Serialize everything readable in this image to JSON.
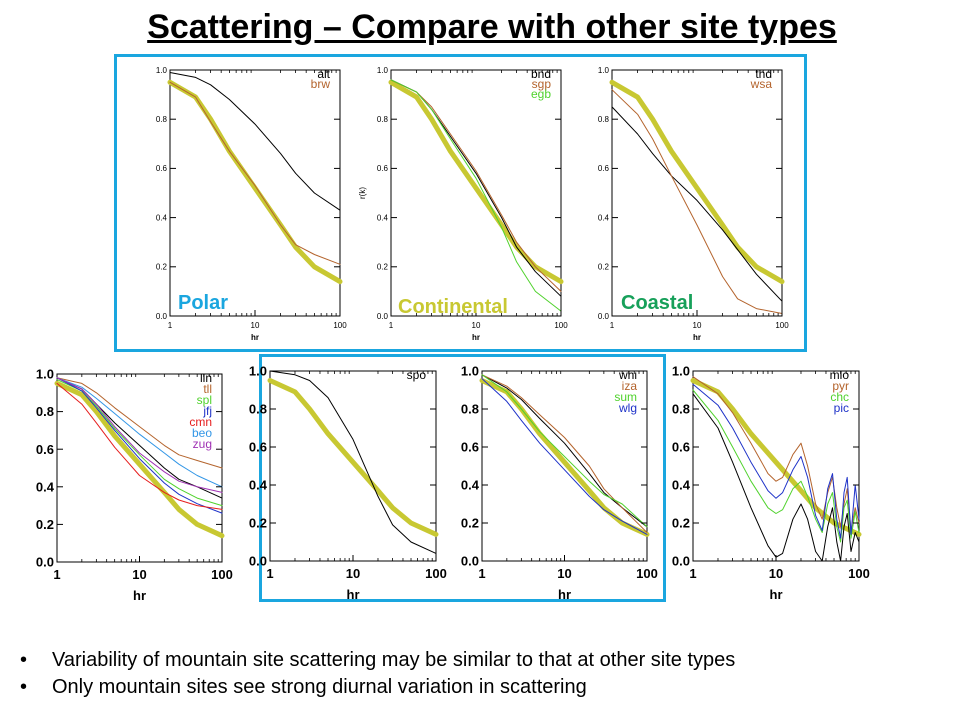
{
  "slide": {
    "title": "Scattering – Compare with other site types",
    "bullets": [
      "Variability of mountain site scattering may be similar to that at other site types",
      "Only mountain sites see strong diurnal variation in scattering"
    ]
  },
  "colors": {
    "highlight_box": "#1aa6df",
    "reference_curve": "#c8c832",
    "polar_label": "#1aa6df",
    "continental_label": "#c8c832",
    "coastal_label": "#17a05a"
  },
  "group_labels": {
    "polar": "Polar",
    "continental": "Continental",
    "coastal": "Coastal"
  },
  "chart_data": [
    {
      "id": "alt-brw",
      "type": "line",
      "xscale": "log",
      "xlim": [
        1,
        100
      ],
      "ylim": [
        0,
        1.0
      ],
      "xticks": [
        "1",
        "10",
        "100"
      ],
      "yticks": [
        "0.0",
        "0.2",
        "0.4",
        "0.6",
        "0.8",
        "1.0"
      ],
      "xlabel": "hr",
      "ylabel": "",
      "group_label": "Polar",
      "series": [
        {
          "name": "alt",
          "color": "#000000",
          "role": "site",
          "x": [
            1,
            2,
            3,
            5,
            10,
            20,
            30,
            50,
            100
          ],
          "y": [
            0.99,
            0.97,
            0.94,
            0.88,
            0.78,
            0.66,
            0.58,
            0.5,
            0.43
          ]
        },
        {
          "name": "brw",
          "color": "#b4642d",
          "role": "site",
          "x": [
            1,
            2,
            3,
            5,
            10,
            20,
            30,
            50,
            100
          ],
          "y": [
            0.95,
            0.89,
            0.79,
            0.67,
            0.53,
            0.37,
            0.29,
            0.25,
            0.21
          ]
        },
        {
          "name": "",
          "color": "#c8c832",
          "role": "reference",
          "x": [
            1,
            2,
            3,
            5,
            10,
            20,
            30,
            50,
            100
          ],
          "y": [
            0.95,
            0.89,
            0.8,
            0.67,
            0.52,
            0.37,
            0.28,
            0.2,
            0.14
          ]
        }
      ]
    },
    {
      "id": "bnd-sgp-egb",
      "type": "line",
      "xscale": "log",
      "xlim": [
        1,
        100
      ],
      "ylim": [
        0,
        1.0
      ],
      "xticks": [
        "1",
        "10",
        "100"
      ],
      "yticks": [
        "0.0",
        "0.2",
        "0.4",
        "0.6",
        "0.8",
        "1.0"
      ],
      "xlabel": "hr",
      "ylabel": "r(k)",
      "group_label": "Continental",
      "series": [
        {
          "name": "bnd",
          "color": "#000000",
          "role": "site",
          "x": [
            1,
            2,
            3,
            5,
            10,
            20,
            30,
            50,
            100
          ],
          "y": [
            0.96,
            0.91,
            0.84,
            0.73,
            0.58,
            0.4,
            0.28,
            0.18,
            0.08
          ]
        },
        {
          "name": "sgp",
          "color": "#b4642d",
          "role": "site",
          "x": [
            1,
            2,
            3,
            5,
            10,
            20,
            30,
            50,
            100
          ],
          "y": [
            0.96,
            0.91,
            0.85,
            0.74,
            0.59,
            0.41,
            0.3,
            0.2,
            0.1
          ]
        },
        {
          "name": "egb",
          "color": "#50d22d",
          "role": "site",
          "x": [
            1,
            2,
            3,
            5,
            10,
            20,
            30,
            50,
            100
          ],
          "y": [
            0.96,
            0.91,
            0.84,
            0.72,
            0.56,
            0.36,
            0.22,
            0.1,
            0.02
          ]
        },
        {
          "name": "",
          "color": "#c8c832",
          "role": "reference",
          "x": [
            1,
            2,
            3,
            5,
            10,
            20,
            30,
            50,
            100
          ],
          "y": [
            0.95,
            0.89,
            0.8,
            0.67,
            0.52,
            0.37,
            0.28,
            0.2,
            0.14
          ]
        }
      ]
    },
    {
      "id": "thd-wsa",
      "type": "line",
      "xscale": "log",
      "xlim": [
        1,
        100
      ],
      "ylim": [
        0,
        1.0
      ],
      "xticks": [
        "1",
        "10",
        "100"
      ],
      "yticks": [
        "0.0",
        "0.2",
        "0.4",
        "0.6",
        "0.8",
        "1.0"
      ],
      "xlabel": "hr",
      "ylabel": "",
      "group_label": "Coastal",
      "series": [
        {
          "name": "thd",
          "color": "#000000",
          "role": "site",
          "x": [
            1,
            2,
            3,
            5,
            10,
            20,
            30,
            50,
            100
          ],
          "y": [
            0.85,
            0.74,
            0.66,
            0.57,
            0.47,
            0.35,
            0.27,
            0.17,
            0.06
          ]
        },
        {
          "name": "wsa",
          "color": "#b4642d",
          "role": "site",
          "x": [
            1,
            2,
            3,
            5,
            10,
            20,
            30,
            50,
            100
          ],
          "y": [
            0.92,
            0.82,
            0.72,
            0.57,
            0.37,
            0.16,
            0.07,
            0.03,
            0.01
          ]
        },
        {
          "name": "",
          "color": "#c8c832",
          "role": "reference",
          "x": [
            1,
            2,
            3,
            5,
            10,
            20,
            30,
            50,
            100
          ],
          "y": [
            0.95,
            0.89,
            0.8,
            0.67,
            0.52,
            0.37,
            0.28,
            0.2,
            0.14
          ]
        }
      ]
    },
    {
      "id": "lln-tll-spl-jfj-cmn-beo-zug",
      "type": "line",
      "xscale": "log",
      "xlim": [
        1,
        100
      ],
      "ylim": [
        0,
        1.0
      ],
      "xticks": [
        "1",
        "10",
        "100"
      ],
      "yticks": [
        "0.0",
        "0.2",
        "0.4",
        "0.6",
        "0.8",
        "1.0"
      ],
      "xlabel": "hr",
      "ylabel": "",
      "series": [
        {
          "name": "lln",
          "color": "#000000",
          "role": "site",
          "x": [
            1,
            2,
            3,
            5,
            10,
            20,
            30,
            50,
            100
          ],
          "y": [
            0.98,
            0.92,
            0.84,
            0.74,
            0.62,
            0.5,
            0.44,
            0.4,
            0.34
          ]
        },
        {
          "name": "tll",
          "color": "#b4642d",
          "role": "site",
          "x": [
            1,
            2,
            3,
            5,
            10,
            20,
            30,
            50,
            100
          ],
          "y": [
            0.98,
            0.95,
            0.9,
            0.82,
            0.72,
            0.62,
            0.57,
            0.54,
            0.5
          ]
        },
        {
          "name": "spl",
          "color": "#50d22d",
          "role": "site",
          "x": [
            1,
            2,
            3,
            5,
            10,
            20,
            30,
            50,
            100
          ],
          "y": [
            0.97,
            0.91,
            0.83,
            0.71,
            0.57,
            0.44,
            0.39,
            0.34,
            0.3
          ]
        },
        {
          "name": "jfj",
          "color": "#1e32c8",
          "role": "site",
          "x": [
            1,
            2,
            3,
            5,
            10,
            20,
            30,
            50,
            100
          ],
          "y": [
            0.98,
            0.91,
            0.82,
            0.7,
            0.55,
            0.42,
            0.36,
            0.31,
            0.26
          ]
        },
        {
          "name": "cmn",
          "color": "#e61e1e",
          "role": "site",
          "x": [
            1,
            2,
            3,
            5,
            10,
            20,
            30,
            50,
            100
          ],
          "y": [
            0.95,
            0.84,
            0.74,
            0.61,
            0.46,
            0.37,
            0.33,
            0.3,
            0.28
          ]
        },
        {
          "name": "beo",
          "color": "#3296e6",
          "role": "site",
          "x": [
            1,
            2,
            3,
            5,
            10,
            20,
            30,
            50,
            100
          ],
          "y": [
            0.98,
            0.93,
            0.87,
            0.79,
            0.68,
            0.58,
            0.52,
            0.46,
            0.4
          ]
        },
        {
          "name": "zug",
          "color": "#a032b4",
          "role": "site",
          "x": [
            1,
            2,
            3,
            5,
            10,
            20,
            30,
            50,
            100
          ],
          "y": [
            0.98,
            0.92,
            0.84,
            0.72,
            0.58,
            0.48,
            0.43,
            0.4,
            0.37
          ]
        },
        {
          "name": "",
          "color": "#c8c832",
          "role": "reference",
          "x": [
            1,
            2,
            3,
            5,
            10,
            20,
            30,
            50,
            100
          ],
          "y": [
            0.95,
            0.89,
            0.8,
            0.67,
            0.52,
            0.37,
            0.28,
            0.2,
            0.14
          ]
        }
      ]
    },
    {
      "id": "spo",
      "type": "line",
      "xscale": "log",
      "xlim": [
        1,
        100
      ],
      "ylim": [
        0,
        1.0
      ],
      "xticks": [
        "1",
        "10",
        "100"
      ],
      "yticks": [
        "0.0",
        "0.2",
        "0.4",
        "0.6",
        "0.8",
        "1.0"
      ],
      "xlabel": "hr",
      "ylabel": "",
      "series": [
        {
          "name": "spo",
          "color": "#000000",
          "role": "site",
          "x": [
            1,
            2,
            3,
            5,
            10,
            20,
            30,
            50,
            100
          ],
          "y": [
            1.0,
            0.98,
            0.95,
            0.86,
            0.64,
            0.34,
            0.19,
            0.1,
            0.04
          ]
        },
        {
          "name": "",
          "color": "#c8c832",
          "role": "reference",
          "x": [
            1,
            2,
            3,
            5,
            10,
            20,
            30,
            50,
            100
          ],
          "y": [
            0.95,
            0.89,
            0.8,
            0.67,
            0.52,
            0.37,
            0.28,
            0.2,
            0.14
          ]
        }
      ]
    },
    {
      "id": "whi-iza-sum-wlg",
      "type": "line",
      "xscale": "log",
      "xlim": [
        1,
        100
      ],
      "ylim": [
        0,
        1.0
      ],
      "xticks": [
        "1",
        "10",
        "100"
      ],
      "yticks": [
        "0.0",
        "0.2",
        "0.4",
        "0.6",
        "0.8",
        "1.0"
      ],
      "xlabel": "hr",
      "ylabel": "",
      "series": [
        {
          "name": "whi",
          "color": "#000000",
          "role": "site",
          "x": [
            1,
            2,
            3,
            5,
            10,
            20,
            30,
            50,
            100
          ],
          "y": [
            0.98,
            0.91,
            0.85,
            0.75,
            0.62,
            0.46,
            0.36,
            0.28,
            0.18
          ]
        },
        {
          "name": "iza",
          "color": "#b4642d",
          "role": "site",
          "x": [
            1,
            2,
            3,
            5,
            10,
            20,
            30,
            50,
            100
          ],
          "y": [
            0.98,
            0.92,
            0.86,
            0.77,
            0.65,
            0.5,
            0.38,
            0.28,
            0.15
          ]
        },
        {
          "name": "sum",
          "color": "#50d22d",
          "role": "site",
          "x": [
            1,
            2,
            3,
            5,
            10,
            20,
            30,
            50,
            100
          ],
          "y": [
            0.98,
            0.89,
            0.8,
            0.68,
            0.55,
            0.42,
            0.35,
            0.3,
            0.18
          ]
        },
        {
          "name": "wlg",
          "color": "#1e32c8",
          "role": "site",
          "x": [
            1,
            2,
            3,
            5,
            10,
            20,
            30,
            50,
            100
          ],
          "y": [
            0.96,
            0.84,
            0.74,
            0.62,
            0.48,
            0.34,
            0.27,
            0.21,
            0.14
          ]
        },
        {
          "name": "",
          "color": "#c8c832",
          "role": "reference",
          "x": [
            1,
            2,
            3,
            5,
            10,
            20,
            30,
            50,
            100
          ],
          "y": [
            0.95,
            0.89,
            0.8,
            0.67,
            0.52,
            0.37,
            0.28,
            0.2,
            0.14
          ]
        }
      ]
    },
    {
      "id": "mlo-pyr-chc-pic",
      "type": "line",
      "xscale": "log",
      "xlim": [
        1,
        100
      ],
      "ylim": [
        0,
        1.0
      ],
      "xticks": [
        "1",
        "10",
        "100"
      ],
      "yticks": [
        "0.0",
        "0.2",
        "0.4",
        "0.6",
        "0.8",
        "1.0"
      ],
      "xlabel": "hr",
      "ylabel": "",
      "series": [
        {
          "name": "mlo",
          "color": "#000000",
          "role": "site",
          "x": [
            1,
            2,
            3,
            5,
            8,
            10,
            12,
            16,
            20,
            24,
            30,
            36,
            42,
            48,
            54,
            60,
            66,
            72,
            80,
            90,
            100
          ],
          "y": [
            0.88,
            0.7,
            0.52,
            0.28,
            0.08,
            0.02,
            0.04,
            0.22,
            0.3,
            0.22,
            0.05,
            0.0,
            0.18,
            0.28,
            0.1,
            0.0,
            0.18,
            0.25,
            0.05,
            0.15,
            0.1
          ]
        },
        {
          "name": "pyr",
          "color": "#b4642d",
          "role": "site",
          "x": [
            1,
            2,
            3,
            5,
            8,
            10,
            12,
            16,
            20,
            24,
            30,
            36,
            42,
            48,
            54,
            60,
            66,
            72,
            80,
            90,
            100
          ],
          "y": [
            0.97,
            0.88,
            0.78,
            0.62,
            0.46,
            0.42,
            0.44,
            0.56,
            0.62,
            0.5,
            0.3,
            0.22,
            0.36,
            0.44,
            0.28,
            0.18,
            0.3,
            0.38,
            0.16,
            0.28,
            0.2
          ]
        },
        {
          "name": "chc",
          "color": "#50d22d",
          "role": "site",
          "x": [
            1,
            2,
            3,
            5,
            8,
            10,
            12,
            16,
            20,
            24,
            30,
            36,
            42,
            48,
            54,
            60,
            66,
            72,
            80,
            90,
            100
          ],
          "y": [
            0.9,
            0.74,
            0.6,
            0.42,
            0.28,
            0.25,
            0.27,
            0.38,
            0.42,
            0.34,
            0.22,
            0.15,
            0.3,
            0.36,
            0.18,
            0.1,
            0.28,
            0.32,
            0.12,
            0.26,
            0.15
          ]
        },
        {
          "name": "pic",
          "color": "#1e32c8",
          "role": "site",
          "x": [
            1,
            2,
            3,
            5,
            8,
            10,
            12,
            16,
            20,
            24,
            30,
            36,
            42,
            48,
            54,
            60,
            66,
            72,
            80,
            90,
            100
          ],
          "y": [
            0.93,
            0.82,
            0.7,
            0.52,
            0.37,
            0.33,
            0.36,
            0.48,
            0.55,
            0.44,
            0.24,
            0.16,
            0.38,
            0.46,
            0.22,
            0.12,
            0.36,
            0.44,
            0.14,
            0.4,
            0.22
          ]
        },
        {
          "name": "",
          "color": "#c8c832",
          "role": "reference",
          "x": [
            1,
            2,
            3,
            5,
            10,
            20,
            30,
            50,
            100
          ],
          "y": [
            0.95,
            0.89,
            0.8,
            0.67,
            0.52,
            0.37,
            0.28,
            0.2,
            0.14
          ]
        }
      ]
    }
  ]
}
